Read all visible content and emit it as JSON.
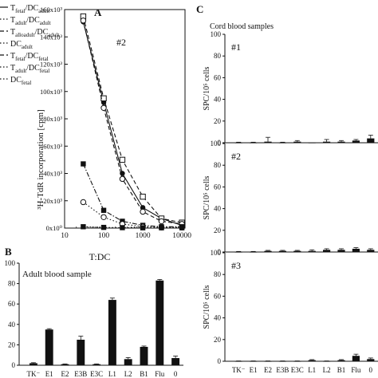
{
  "panels": {
    "A": "A",
    "B": "B",
    "C": "C"
  },
  "legend": [
    {
      "label": "T",
      "sub": "fetal",
      "label2": "/DC",
      "sub2": "adult",
      "style": "solid"
    },
    {
      "label": "T",
      "sub": "adult",
      "label2": "/DC",
      "sub2": "adult",
      "style": "dotted"
    },
    {
      "label": "T",
      "sub": "alloadult",
      "label2": "/DC",
      "sub2": "adult",
      "style": "dashed"
    },
    {
      "label": "DC",
      "sub": "adult",
      "label2": "",
      "sub2": "",
      "style": "dotted"
    },
    {
      "label": "T",
      "sub": "fetal",
      "label2": "/DC",
      "sub2": "fetal",
      "style": "dashed"
    },
    {
      "label": "T",
      "sub": "adult",
      "label2": "/DC",
      "sub2": "fetal",
      "style": "dotted"
    },
    {
      "label": "DC",
      "sub": "fetal",
      "label2": "",
      "sub2": "",
      "style": "dotted"
    }
  ],
  "chart_data": [
    {
      "id": "A",
      "type": "line",
      "title": "",
      "annotation": "#2",
      "xlabel": "T:DC",
      "ylabel": "³H-TdR incorporation [cpm]",
      "x": [
        30,
        100,
        300,
        1000,
        3000,
        10000
      ],
      "x_tick_labels": [
        "10",
        "100",
        "1000",
        "10000"
      ],
      "x_tick_values": [
        10,
        100,
        1000,
        10000
      ],
      "y_tick_labels": [
        "0x10⁰",
        "20x10³",
        "40x10³",
        "60x10³",
        "80x10³",
        "100x10³",
        "120x10³",
        "140x10³",
        "160x10³"
      ],
      "ylim": [
        0,
        160000
      ],
      "xscale": "log",
      "series": [
        {
          "marker": "filled-circle",
          "dash": "solid",
          "values": [
            151000,
            92000,
            40000,
            15000,
            7000,
            2000
          ]
        },
        {
          "marker": "open-square",
          "dash": "dashed",
          "values": [
            155000,
            95000,
            50000,
            23000,
            7000,
            4000
          ]
        },
        {
          "marker": "open-circle",
          "dash": "dashed",
          "values": [
            152000,
            88000,
            36000,
            12000,
            5000,
            3000
          ]
        },
        {
          "marker": "filled-square",
          "dash": "dashdot",
          "values": [
            47000,
            13000,
            5000,
            2000,
            1000,
            1000
          ]
        },
        {
          "marker": "open-circle",
          "dash": "dotted",
          "values": [
            19000,
            8000,
            3000,
            1000,
            500,
            500
          ]
        },
        {
          "marker": "filled-square",
          "dash": "dotted",
          "values": [
            1000,
            500,
            300,
            200,
            200,
            200
          ]
        }
      ]
    },
    {
      "id": "B",
      "type": "bar",
      "title": "Adult blood sample",
      "categories": [
        "TK⁻",
        "E1",
        "E2",
        "E3B",
        "E3C",
        "L1",
        "L2",
        "B1",
        "Flu",
        "0"
      ],
      "values": [
        2,
        35,
        1,
        25,
        1,
        64,
        6,
        18,
        83,
        7
      ],
      "errors": [
        0.5,
        0.8,
        0.3,
        3.5,
        0.3,
        1.8,
        1.5,
        0.8,
        1.0,
        2.0
      ],
      "ylim": [
        0,
        100
      ],
      "y_tick_labels": [
        "0",
        "20",
        "40",
        "60",
        "80",
        "100"
      ]
    },
    {
      "id": "C",
      "type": "bar",
      "title": "Cord blood samples",
      "categories": [
        "TK⁻",
        "E1",
        "E2",
        "E3B",
        "E3C",
        "L1",
        "L2",
        "B1",
        "Flu",
        "0"
      ],
      "ylabel": "SPC/10⁵ cells",
      "ylim": [
        0,
        100
      ],
      "y_tick_labels": [
        "0",
        "20",
        "40",
        "60",
        "80",
        "100"
      ],
      "series": [
        {
          "name": "#1",
          "values": [
            0,
            0,
            1,
            0,
            1,
            0,
            1,
            1,
            2,
            4
          ],
          "errors": [
            0.5,
            0.5,
            4,
            0.5,
            1,
            0,
            2,
            1,
            1,
            3
          ]
        },
        {
          "name": "#2",
          "values": [
            0,
            0,
            1,
            1,
            1,
            1,
            2,
            2,
            3,
            2
          ],
          "errors": [
            0.5,
            0.5,
            0.5,
            0.5,
            0.5,
            1,
            1,
            1,
            1,
            1
          ]
        },
        {
          "name": "#3",
          "values": [
            0,
            0,
            0,
            0,
            0,
            1,
            0,
            1,
            5,
            2
          ],
          "errors": [
            0.3,
            0.3,
            0.3,
            0.3,
            0.3,
            0.5,
            0.3,
            0.5,
            1.5,
            1
          ]
        }
      ]
    }
  ]
}
